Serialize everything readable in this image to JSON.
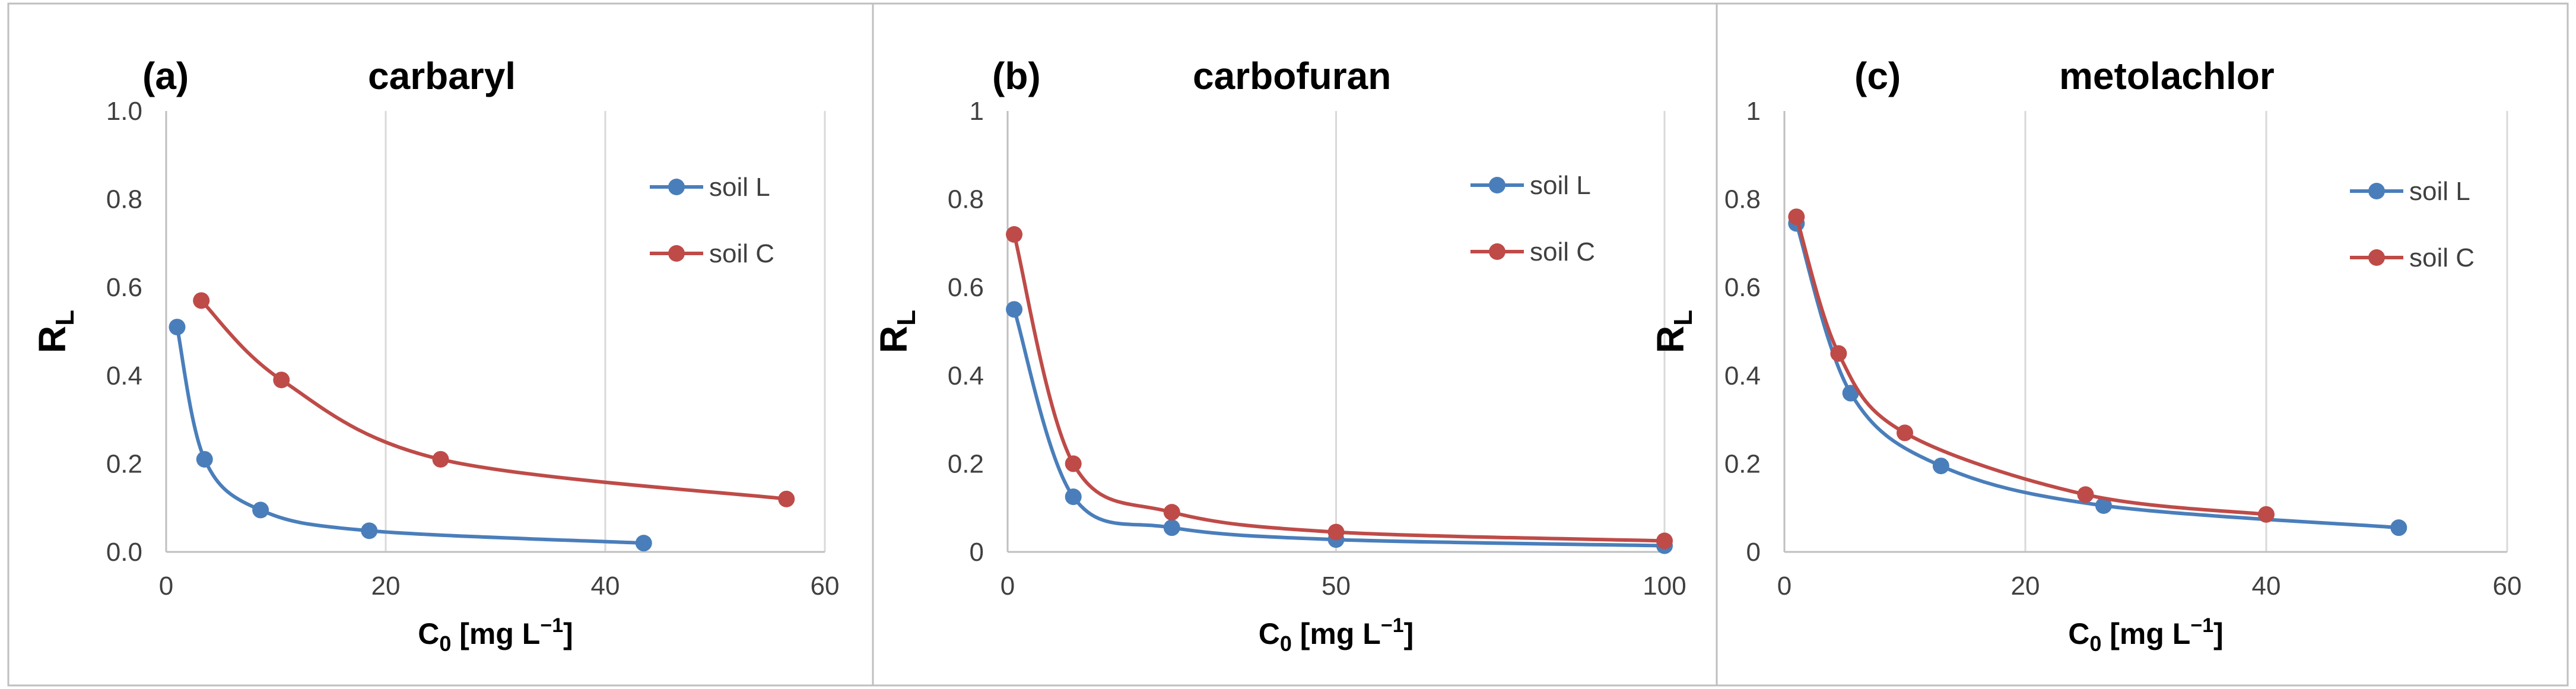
{
  "chart_data": [
    {
      "type": "line",
      "panel_label": "(a)",
      "title": "carbaryl",
      "ylabel_main": "R",
      "ylabel_sub": "L",
      "xlabel_main": "C",
      "xlabel_sub": "0",
      "xlabel_unit": " [mg L",
      "xlabel_sup": "−1",
      "xlabel_close": "]",
      "xlim": [
        0,
        60
      ],
      "ylim": [
        0,
        1
      ],
      "x_ticks": [
        0,
        20,
        40,
        60
      ],
      "y_ticks": [
        0,
        0.2,
        0.4,
        0.6,
        0.8,
        1.0
      ],
      "x_tick_labels": [
        "0",
        "20",
        "40",
        "60"
      ],
      "y_tick_labels": [
        "0.0",
        "0.2",
        "0.4",
        "0.6",
        "0.8",
        "1.0"
      ],
      "grid": "vertical",
      "legend_position": "right",
      "series": [
        {
          "name": "soil L",
          "color": "#4a7ebb",
          "points": [
            [
              1.0,
              0.51
            ],
            [
              3.5,
              0.21
            ],
            [
              8.6,
              0.095
            ],
            [
              18.5,
              0.048
            ],
            [
              43.5,
              0.02
            ]
          ]
        },
        {
          "name": "soil C",
          "color": "#be4b48",
          "points": [
            [
              3.2,
              0.57
            ],
            [
              10.5,
              0.39
            ],
            [
              25.0,
              0.21
            ],
            [
              56.5,
              0.12
            ]
          ]
        }
      ]
    },
    {
      "type": "line",
      "panel_label": "(b)",
      "title": "carbofuran",
      "ylabel_main": "R",
      "ylabel_sub": "L",
      "xlabel_main": "C",
      "xlabel_sub": "0",
      "xlabel_unit": " [mg L",
      "xlabel_sup": "−1",
      "xlabel_close": "]",
      "xlim": [
        0,
        100
      ],
      "ylim": [
        0,
        1
      ],
      "x_ticks": [
        0,
        50,
        100
      ],
      "y_ticks": [
        0,
        0.2,
        0.4,
        0.6,
        0.8,
        1.0
      ],
      "x_tick_labels": [
        "0",
        "50",
        "100"
      ],
      "y_tick_labels": [
        "0",
        "0.2",
        "0.4",
        "0.6",
        "0.8",
        "1"
      ],
      "grid": "vertical",
      "legend_position": "right",
      "series": [
        {
          "name": "soil L",
          "color": "#4a7ebb",
          "points": [
            [
              1.0,
              0.55
            ],
            [
              10.0,
              0.125
            ],
            [
              25.0,
              0.055
            ],
            [
              50.0,
              0.028
            ],
            [
              100.0,
              0.014
            ]
          ]
        },
        {
          "name": "soil C",
          "color": "#be4b48",
          "points": [
            [
              1.0,
              0.72
            ],
            [
              10.0,
              0.2
            ],
            [
              25.0,
              0.09
            ],
            [
              50.0,
              0.045
            ],
            [
              100.0,
              0.025
            ]
          ]
        }
      ]
    },
    {
      "type": "line",
      "panel_label": "(c)",
      "title": "metolachlor",
      "ylabel_main": "R",
      "ylabel_sub": "L",
      "xlabel_main": "C",
      "xlabel_sub": "0",
      "xlabel_unit": " [mg L",
      "xlabel_sup": "−1",
      "xlabel_close": "]",
      "xlim": [
        0,
        60
      ],
      "ylim": [
        0,
        1
      ],
      "x_ticks": [
        0,
        20,
        40,
        60
      ],
      "y_ticks": [
        0,
        0.2,
        0.4,
        0.6,
        0.8,
        1.0
      ],
      "x_tick_labels": [
        "0",
        "20",
        "40",
        "60"
      ],
      "y_tick_labels": [
        "0",
        "0.2",
        "0.4",
        "0.6",
        "0.8",
        "1"
      ],
      "grid": "vertical",
      "legend_position": "right",
      "series": [
        {
          "name": "soil L",
          "color": "#4a7ebb",
          "points": [
            [
              1.0,
              0.745
            ],
            [
              5.5,
              0.36
            ],
            [
              13.0,
              0.195
            ],
            [
              26.5,
              0.105
            ],
            [
              51.0,
              0.055
            ]
          ]
        },
        {
          "name": "soil C",
          "color": "#be4b48",
          "points": [
            [
              1.0,
              0.76
            ],
            [
              4.5,
              0.45
            ],
            [
              10.0,
              0.27
            ],
            [
              25.0,
              0.13
            ],
            [
              40.0,
              0.085
            ]
          ]
        }
      ]
    }
  ]
}
